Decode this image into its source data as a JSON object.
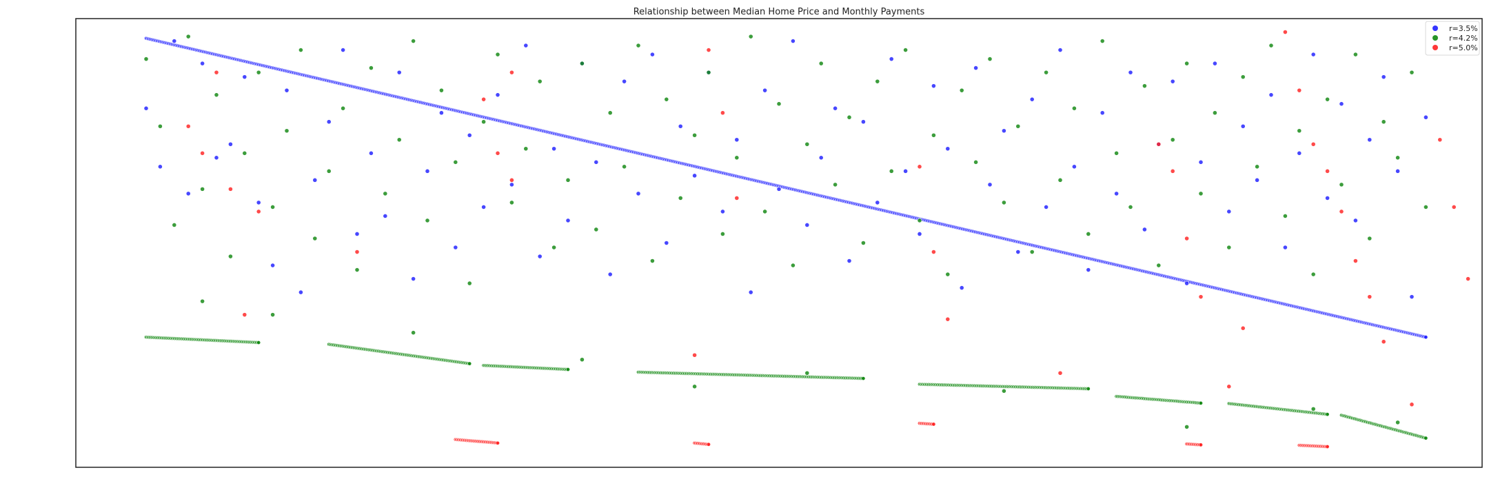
{
  "chart_data": {
    "type": "scatter",
    "title": "Relationship between Median Home Price and Monthly Payments",
    "xlabel": "",
    "ylabel": "",
    "xlim": [
      0,
      100
    ],
    "ylim": [
      0,
      100
    ],
    "grid": false,
    "axis_tick_labels_visible": false,
    "legend_position": "top-right",
    "series": [
      {
        "name": "r=3.5%",
        "color": "#1f1fff",
        "trend_line": {
          "x": [
            5,
            96
          ],
          "y": [
            95.6,
            29.0
          ]
        },
        "scatter_points": [
          [
            5,
            80
          ],
          [
            6,
            67
          ],
          [
            7,
            95
          ],
          [
            8,
            61
          ],
          [
            9,
            90
          ],
          [
            10,
            69
          ],
          [
            11,
            72
          ],
          [
            12,
            87
          ],
          [
            13,
            59
          ],
          [
            14,
            45
          ],
          [
            15,
            84
          ],
          [
            16,
            39
          ],
          [
            17,
            64
          ],
          [
            18,
            77
          ],
          [
            19,
            93
          ],
          [
            20,
            52
          ],
          [
            21,
            70
          ],
          [
            22,
            56
          ],
          [
            23,
            88
          ],
          [
            24,
            42
          ],
          [
            25,
            66
          ],
          [
            26,
            79
          ],
          [
            27,
            49
          ],
          [
            28,
            74
          ],
          [
            29,
            58
          ],
          [
            30,
            83
          ],
          [
            31,
            63
          ],
          [
            32,
            94
          ],
          [
            33,
            47
          ],
          [
            34,
            71
          ],
          [
            35,
            55
          ],
          [
            36,
            90
          ],
          [
            37,
            68
          ],
          [
            38,
            43
          ],
          [
            39,
            86
          ],
          [
            40,
            61
          ],
          [
            41,
            92
          ],
          [
            42,
            50
          ],
          [
            43,
            76
          ],
          [
            44,
            65
          ],
          [
            45,
            88
          ],
          [
            46,
            57
          ],
          [
            47,
            73
          ],
          [
            48,
            39
          ],
          [
            49,
            84
          ],
          [
            50,
            62
          ],
          [
            51,
            95
          ],
          [
            52,
            54
          ],
          [
            53,
            69
          ],
          [
            54,
            80
          ],
          [
            55,
            46
          ],
          [
            56,
            77
          ],
          [
            57,
            59
          ],
          [
            58,
            91
          ],
          [
            59,
            66
          ],
          [
            60,
            52
          ],
          [
            61,
            85
          ],
          [
            62,
            71
          ],
          [
            63,
            40
          ],
          [
            64,
            89
          ],
          [
            65,
            63
          ],
          [
            66,
            75
          ],
          [
            67,
            48
          ],
          [
            68,
            82
          ],
          [
            69,
            58
          ],
          [
            70,
            93
          ],
          [
            71,
            67
          ],
          [
            72,
            44
          ],
          [
            73,
            79
          ],
          [
            74,
            61
          ],
          [
            75,
            88
          ],
          [
            76,
            53
          ],
          [
            77,
            72
          ],
          [
            78,
            86
          ],
          [
            79,
            41
          ],
          [
            80,
            68
          ],
          [
            81,
            90
          ],
          [
            82,
            57
          ],
          [
            83,
            76
          ],
          [
            84,
            64
          ],
          [
            85,
            83
          ],
          [
            86,
            49
          ],
          [
            87,
            70
          ],
          [
            88,
            92
          ],
          [
            89,
            60
          ],
          [
            90,
            81
          ],
          [
            91,
            55
          ],
          [
            92,
            73
          ],
          [
            93,
            87
          ],
          [
            94,
            66
          ],
          [
            95,
            38
          ],
          [
            96,
            78
          ]
        ]
      },
      {
        "name": "r=4.2%",
        "color": "#118811",
        "trend_segments": [
          {
            "x": [
              5,
              13
            ],
            "y": [
              29.0,
              27.8
            ]
          },
          {
            "x": [
              18,
              28
            ],
            "y": [
              27.4,
              23.1
            ]
          },
          {
            "x": [
              29,
              35
            ],
            "y": [
              22.7,
              21.8
            ]
          },
          {
            "x": [
              40,
              56
            ],
            "y": [
              21.2,
              19.8
            ]
          },
          {
            "x": [
              60,
              72
            ],
            "y": [
              18.5,
              17.5
            ]
          },
          {
            "x": [
              74,
              80
            ],
            "y": [
              15.8,
              14.3
            ]
          },
          {
            "x": [
              82,
              89
            ],
            "y": [
              14.2,
              11.8
            ]
          },
          {
            "x": [
              90,
              96
            ],
            "y": [
              11.6,
              6.5
            ]
          }
        ],
        "scatter_points": [
          [
            5,
            91
          ],
          [
            6,
            76
          ],
          [
            7,
            54
          ],
          [
            8,
            96
          ],
          [
            9,
            62
          ],
          [
            10,
            83
          ],
          [
            11,
            47
          ],
          [
            12,
            70
          ],
          [
            13,
            88
          ],
          [
            14,
            58
          ],
          [
            15,
            75
          ],
          [
            16,
            93
          ],
          [
            17,
            51
          ],
          [
            18,
            66
          ],
          [
            19,
            80
          ],
          [
            20,
            44
          ],
          [
            21,
            89
          ],
          [
            22,
            61
          ],
          [
            23,
            73
          ],
          [
            24,
            95
          ],
          [
            25,
            55
          ],
          [
            26,
            84
          ],
          [
            27,
            68
          ],
          [
            28,
            41
          ],
          [
            29,
            77
          ],
          [
            30,
            92
          ],
          [
            31,
            59
          ],
          [
            32,
            71
          ],
          [
            33,
            86
          ],
          [
            34,
            49
          ],
          [
            35,
            64
          ],
          [
            36,
            90
          ],
          [
            37,
            53
          ],
          [
            38,
            79
          ],
          [
            39,
            67
          ],
          [
            40,
            94
          ],
          [
            41,
            46
          ],
          [
            42,
            82
          ],
          [
            43,
            60
          ],
          [
            44,
            74
          ],
          [
            45,
            88
          ],
          [
            46,
            52
          ],
          [
            47,
            69
          ],
          [
            48,
            96
          ],
          [
            49,
            57
          ],
          [
            50,
            81
          ],
          [
            51,
            45
          ],
          [
            52,
            72
          ],
          [
            53,
            90
          ],
          [
            54,
            63
          ],
          [
            55,
            78
          ],
          [
            56,
            50
          ],
          [
            57,
            86
          ],
          [
            58,
            66
          ],
          [
            59,
            93
          ],
          [
            60,
            55
          ],
          [
            61,
            74
          ],
          [
            62,
            43
          ],
          [
            63,
            84
          ],
          [
            64,
            68
          ],
          [
            65,
            91
          ],
          [
            66,
            59
          ],
          [
            67,
            76
          ],
          [
            68,
            48
          ],
          [
            69,
            88
          ],
          [
            70,
            64
          ],
          [
            71,
            80
          ],
          [
            72,
            52
          ],
          [
            73,
            95
          ],
          [
            74,
            70
          ],
          [
            75,
            58
          ],
          [
            76,
            85
          ],
          [
            77,
            45
          ],
          [
            78,
            73
          ],
          [
            79,
            90
          ],
          [
            80,
            61
          ],
          [
            81,
            79
          ],
          [
            82,
            49
          ],
          [
            83,
            87
          ],
          [
            84,
            67
          ],
          [
            85,
            94
          ],
          [
            86,
            56
          ],
          [
            87,
            75
          ],
          [
            88,
            43
          ],
          [
            89,
            82
          ],
          [
            90,
            63
          ],
          [
            91,
            92
          ],
          [
            92,
            51
          ],
          [
            93,
            77
          ],
          [
            94,
            69
          ],
          [
            95,
            88
          ],
          [
            96,
            58
          ],
          [
            9,
            37
          ],
          [
            14,
            34
          ],
          [
            24,
            30
          ],
          [
            36,
            24
          ],
          [
            44,
            18
          ],
          [
            52,
            21
          ],
          [
            66,
            17
          ],
          [
            79,
            9
          ],
          [
            88,
            13
          ],
          [
            94,
            10
          ]
        ]
      },
      {
        "name": "r=5.0%",
        "color": "#ff2222",
        "trend_segments": [
          {
            "x": [
              27,
              30
            ],
            "y": [
              6.2,
              5.4
            ]
          },
          {
            "x": [
              44,
              45
            ],
            "y": [
              5.4,
              5.1
            ]
          },
          {
            "x": [
              60,
              61
            ],
            "y": [
              9.8,
              9.6
            ]
          },
          {
            "x": [
              79,
              80
            ],
            "y": [
              5.2,
              5.0
            ]
          },
          {
            "x": [
              87,
              89
            ],
            "y": [
              4.9,
              4.6
            ]
          }
        ],
        "scatter_points": [
          [
            8,
            76
          ],
          [
            9,
            70
          ],
          [
            10,
            88
          ],
          [
            11,
            62
          ],
          [
            12,
            34
          ],
          [
            13,
            57
          ],
          [
            20,
            48
          ],
          [
            29,
            82
          ],
          [
            30,
            70
          ],
          [
            31,
            64
          ],
          [
            31,
            88
          ],
          [
            44,
            25
          ],
          [
            45,
            93
          ],
          [
            46,
            79
          ],
          [
            47,
            60
          ],
          [
            60,
            67
          ],
          [
            61,
            48
          ],
          [
            62,
            33
          ],
          [
            70,
            21
          ],
          [
            77,
            72
          ],
          [
            78,
            66
          ],
          [
            79,
            51
          ],
          [
            80,
            38
          ],
          [
            82,
            18
          ],
          [
            83,
            31
          ],
          [
            86,
            97
          ],
          [
            87,
            84
          ],
          [
            88,
            72
          ],
          [
            89,
            66
          ],
          [
            90,
            57
          ],
          [
            91,
            46
          ],
          [
            92,
            38
          ],
          [
            93,
            28
          ],
          [
            95,
            14
          ],
          [
            97,
            73
          ],
          [
            98,
            58
          ],
          [
            99,
            42
          ]
        ]
      }
    ]
  }
}
